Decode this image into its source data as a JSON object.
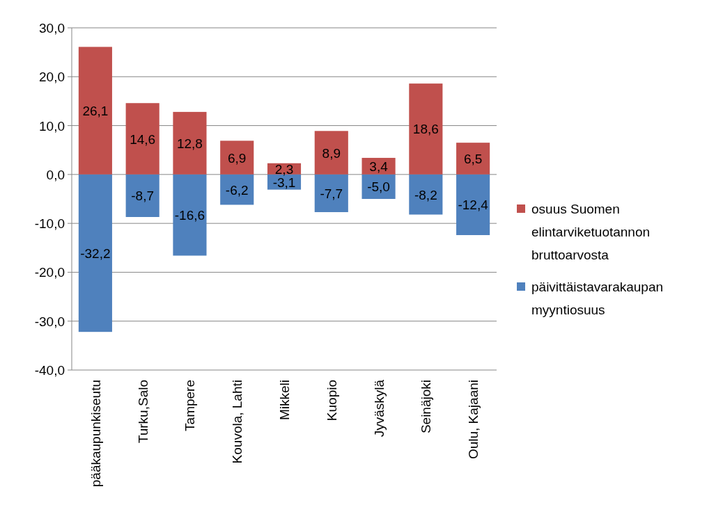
{
  "chart_data": {
    "type": "bar",
    "stacked": true,
    "categories": [
      "pääkaupunkiseutu",
      "Turku,Salo",
      "Tampere",
      "Kouvola, Lahti",
      "Mikkeli",
      "Kuopio",
      "Jyväskylä",
      "Seinäjoki",
      "Oulu, Kajaani"
    ],
    "series": [
      {
        "name": "osuus Suomen elintarviketuotannon bruttoarvosta",
        "color": "#c0504d",
        "values": [
          26.1,
          14.6,
          12.8,
          6.9,
          2.3,
          8.9,
          3.4,
          18.6,
          6.5
        ],
        "value_labels": [
          "26,1",
          "14,6",
          "12,8",
          "6,9",
          "2,3",
          "8,9",
          "3,4",
          "18,6",
          "6,5"
        ]
      },
      {
        "name": "päivittäistavarakaupan myyntiosuus",
        "color": "#4f81bd",
        "values": [
          -32.2,
          -8.7,
          -16.6,
          -6.2,
          -3.1,
          -7.7,
          -5.0,
          -8.2,
          -12.4
        ],
        "value_labels": [
          "-32,2",
          "-8,7",
          "-16,6",
          "-6,2",
          "-3,1",
          "-7,7",
          "-5,0",
          "-8,2",
          "-12,4"
        ]
      }
    ],
    "ylim": [
      -40,
      30
    ],
    "yticks": [
      {
        "value": -40,
        "label": "-40,0"
      },
      {
        "value": -30,
        "label": "-30,0"
      },
      {
        "value": -20,
        "label": "-20,0"
      },
      {
        "value": -10,
        "label": "-10,0"
      },
      {
        "value": 0,
        "label": "0,0"
      },
      {
        "value": 10,
        "label": "10,0"
      },
      {
        "value": 20,
        "label": "20,0"
      },
      {
        "value": 30,
        "label": "30,0"
      }
    ],
    "grid": "y",
    "legend": "right"
  }
}
